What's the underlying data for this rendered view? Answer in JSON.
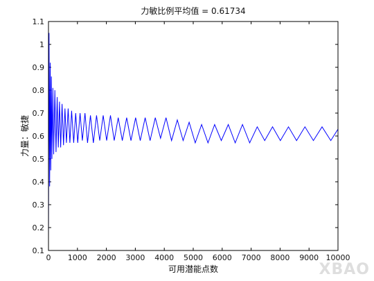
{
  "chart_data": {
    "type": "line",
    "title": "力敏比例平均值 = 0.61734",
    "xlabel": "可用潜能点数",
    "ylabel": "力量：敏捷",
    "xlim": [
      0,
      10000
    ],
    "ylim": [
      0.1,
      1.1
    ],
    "xticks": [
      "0",
      "1000",
      "2000",
      "3000",
      "4000",
      "5000",
      "6000",
      "7000",
      "8000",
      "9000",
      "10000"
    ],
    "yticks": [
      "0.1",
      "0.2",
      "0.3",
      "0.4",
      "0.5",
      "0.6",
      "0.7",
      "0.8",
      "0.9",
      "1",
      "1.1"
    ],
    "grid": false,
    "line_color": "#0000ff",
    "series": [
      {
        "x": [
          0,
          20,
          40,
          60,
          80,
          100,
          120,
          150,
          180,
          220,
          260,
          300,
          340,
          380,
          420,
          470,
          520,
          570,
          620,
          680,
          740,
          800,
          870,
          940,
          1010,
          1090,
          1170,
          1260,
          1350,
          1450,
          1550,
          1660,
          1770,
          1890,
          2010,
          2140,
          2270,
          2410,
          2550,
          2700,
          2850,
          3010,
          3170,
          3340,
          3510,
          3690,
          3870,
          4060,
          4250,
          4450,
          4650,
          4860,
          5070,
          5290,
          5510,
          5740,
          5970,
          6210,
          6450,
          6700,
          6950,
          7210,
          7470,
          7740,
          8010,
          8290,
          8570,
          8860,
          9150,
          9450,
          9750,
          10000
        ],
        "y": [
          0.15,
          1.05,
          0.38,
          0.92,
          0.45,
          0.86,
          0.5,
          0.81,
          0.52,
          0.8,
          0.53,
          0.77,
          0.55,
          0.75,
          0.55,
          0.74,
          0.56,
          0.72,
          0.57,
          0.72,
          0.57,
          0.71,
          0.57,
          0.7,
          0.57,
          0.7,
          0.58,
          0.7,
          0.57,
          0.69,
          0.57,
          0.69,
          0.58,
          0.69,
          0.58,
          0.69,
          0.58,
          0.68,
          0.58,
          0.68,
          0.58,
          0.68,
          0.58,
          0.68,
          0.58,
          0.68,
          0.59,
          0.68,
          0.58,
          0.67,
          0.58,
          0.66,
          0.57,
          0.65,
          0.57,
          0.65,
          0.58,
          0.65,
          0.57,
          0.65,
          0.57,
          0.64,
          0.58,
          0.64,
          0.58,
          0.64,
          0.58,
          0.64,
          0.58,
          0.64,
          0.58,
          0.63
        ]
      }
    ]
  },
  "watermark": "XBAO"
}
